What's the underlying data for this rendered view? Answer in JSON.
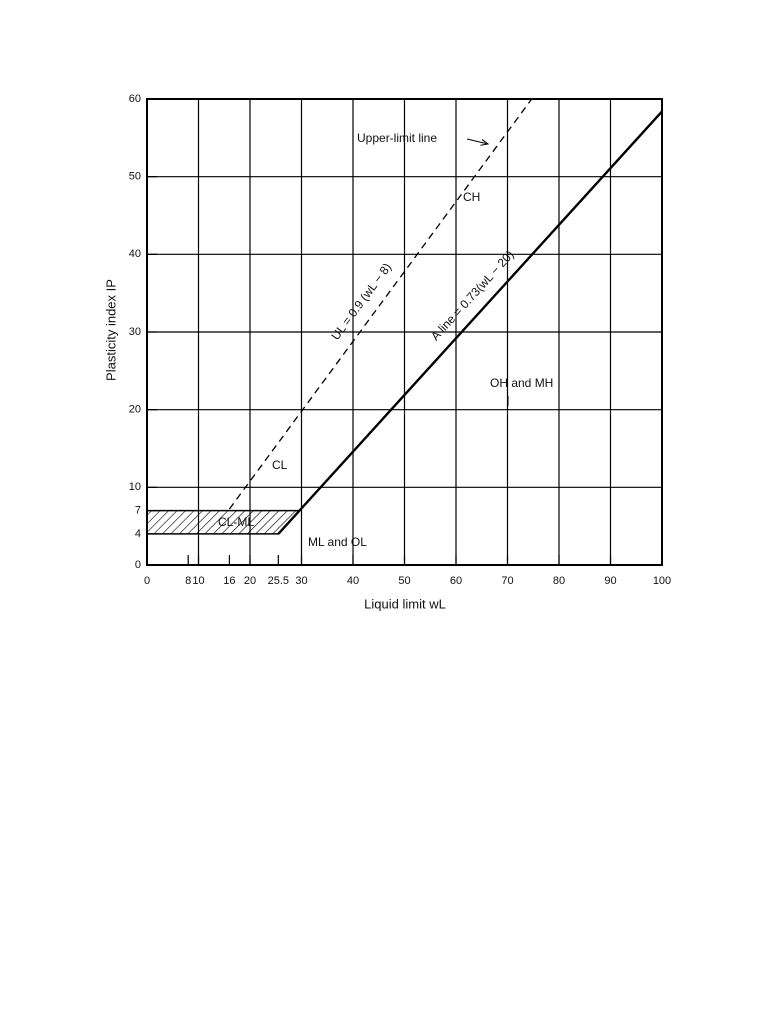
{
  "chart_data": {
    "type": "line",
    "x_label": "Liquid limit wL",
    "y_label": "Plasticity index IP",
    "xlim": [
      0,
      100
    ],
    "ylim": [
      0,
      60
    ],
    "xticks": [
      0,
      8,
      10,
      16,
      20,
      25.5,
      30,
      40,
      50,
      60,
      70,
      80,
      90,
      100
    ],
    "yticks": [
      0,
      4,
      7,
      10,
      20,
      30,
      40,
      50,
      60
    ],
    "xgrid": [
      10,
      20,
      30,
      40,
      50,
      60,
      70,
      80,
      90
    ],
    "ygrid": [
      10,
      20,
      30,
      40,
      50
    ],
    "series": [
      {
        "color": "#000000",
        "style": "solid",
        "x": [
          25.5,
          29.6,
          100
        ],
        "values": [
          4,
          7,
          58.4
        ]
      },
      {
        "color": "#000000",
        "style": "dashed",
        "x": [
          16,
          74.7
        ],
        "values": [
          7.2,
          60
        ]
      }
    ],
    "regions": [
      {
        "hatch": true,
        "x": [
          0,
          25.5,
          29.6,
          0
        ],
        "values": [
          4,
          4,
          7,
          7
        ]
      }
    ],
    "annotations": [
      "Upper-limit line",
      "CH",
      "CL",
      "CL-ML",
      "ML and OL",
      "OH and MH",
      "UL = 0.9 (wL − 8)",
      "A line = 0.73(wL − 20)"
    ]
  }
}
